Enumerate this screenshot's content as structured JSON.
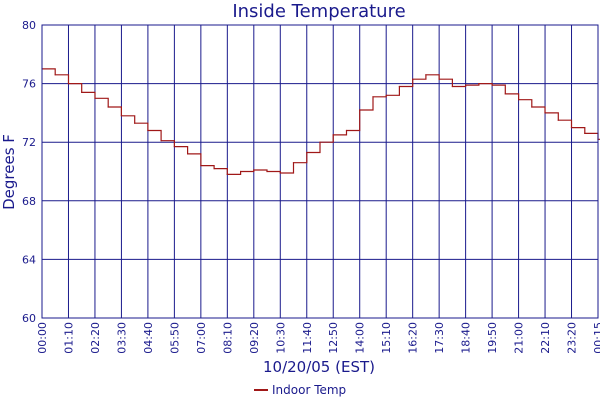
{
  "chart_data": {
    "type": "line",
    "title": "Inside Temperature",
    "xlabel": "10/20/05 (EST)",
    "ylabel": "Degrees F",
    "ylim": [
      60,
      80
    ],
    "yticks": [
      60,
      64,
      68,
      72,
      76,
      80
    ],
    "xticks": [
      "00:00",
      "01:10",
      "02:20",
      "03:30",
      "04:40",
      "05:50",
      "07:00",
      "08:10",
      "09:20",
      "10:30",
      "11:40",
      "12:50",
      "14:00",
      "15:10",
      "16:20",
      "17:30",
      "18:40",
      "19:50",
      "21:00",
      "22:10",
      "23:20",
      "00:15"
    ],
    "grid": true,
    "legend_position": "bottom",
    "series": [
      {
        "name": "Indoor Temp",
        "color": "#a01818",
        "x_ticks": [
          0,
          0.5,
          1,
          1.5,
          2,
          2.5,
          3,
          3.5,
          4,
          4.5,
          5,
          5.5,
          6,
          6.5,
          7,
          7.5,
          8,
          8.5,
          9,
          9.5,
          10,
          10.5,
          11,
          11.5,
          12,
          12.5,
          13,
          13.5,
          14,
          14.5,
          15,
          15.5,
          16,
          16.5,
          17,
          17.5,
          18,
          18.5,
          19,
          19.5,
          20,
          20.5,
          21,
          21.3
        ],
        "values": [
          77.0,
          76.6,
          76.0,
          75.4,
          75.0,
          74.4,
          73.8,
          73.3,
          72.8,
          72.1,
          71.7,
          71.2,
          70.4,
          70.2,
          69.8,
          70.0,
          70.1,
          70.0,
          69.9,
          70.6,
          71.3,
          72.0,
          72.5,
          72.8,
          74.2,
          75.1,
          75.2,
          75.8,
          76.3,
          76.6,
          76.3,
          75.8,
          75.9,
          76.0,
          75.9,
          75.3,
          74.9,
          74.4,
          74.0,
          73.5,
          73.0,
          72.6,
          72.2,
          71.9
        ]
      }
    ]
  }
}
